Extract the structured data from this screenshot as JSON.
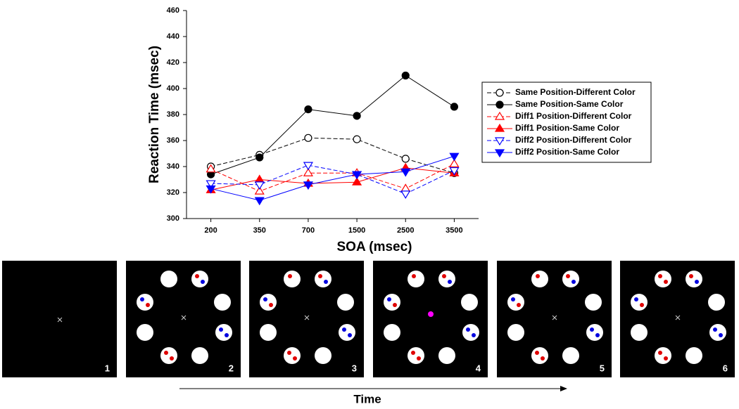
{
  "chart_data": {
    "type": "line",
    "xlabel": "SOA (msec)",
    "ylabel": "Reaction Time (msec)",
    "categories": [
      "200",
      "350",
      "700",
      "1500",
      "2500",
      "3500"
    ],
    "ylim": [
      300,
      460
    ],
    "yticks": [
      300,
      320,
      340,
      360,
      380,
      400,
      420,
      440,
      460
    ],
    "series": [
      {
        "name": "Same Position-Different Color",
        "color": "#000000",
        "marker": "circle",
        "filled": false,
        "linestyle": "dashed",
        "values": [
          340,
          349,
          362,
          361,
          346,
          335
        ]
      },
      {
        "name": "Same Position-Same Color",
        "color": "#000000",
        "marker": "circle",
        "filled": true,
        "linestyle": "solid",
        "values": [
          334,
          347,
          384,
          379,
          410,
          386
        ]
      },
      {
        "name": "Diff1 Position-Different Color",
        "color": "#ff0000",
        "marker": "triangle-up",
        "filled": false,
        "linestyle": "dashed",
        "values": [
          338,
          321,
          335,
          335,
          323,
          342
        ]
      },
      {
        "name": "Diff1 Position-Same Color",
        "color": "#ff0000",
        "marker": "triangle-up",
        "filled": true,
        "linestyle": "solid",
        "values": [
          322,
          330,
          327,
          328,
          339,
          335
        ]
      },
      {
        "name": "Diff2 Position-Different Color",
        "color": "#0000ff",
        "marker": "triangle-down",
        "filled": false,
        "linestyle": "dashed",
        "values": [
          327,
          326,
          341,
          334,
          319,
          337
        ]
      },
      {
        "name": "Diff2 Position-Same Color",
        "color": "#0000ff",
        "marker": "triangle-down",
        "filled": true,
        "linestyle": "solid",
        "values": [
          323,
          314,
          326,
          334,
          336,
          348
        ]
      }
    ]
  },
  "panels": [
    "1",
    "2",
    "3",
    "4",
    "5",
    "6"
  ],
  "time_label": "Time"
}
